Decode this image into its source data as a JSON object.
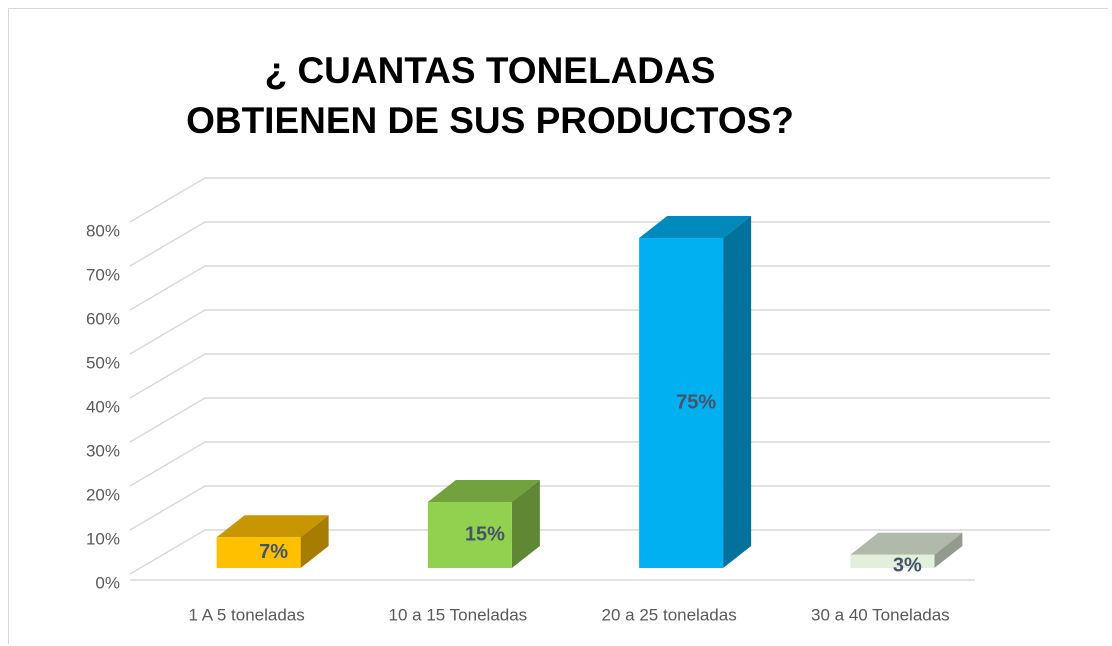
{
  "chart_data": {
    "type": "bar3d",
    "title": "¿ CUANTAS TONELADAS OBTIENEN DE SUS PRODUCTOS?",
    "categories": [
      "1 A 5 toneladas",
      "10 a 15 Toneladas",
      "20 a 25 toneladas",
      "30 a 40 Toneladas"
    ],
    "values": [
      7,
      15,
      75,
      3
    ],
    "value_labels": [
      "7%",
      "15%",
      "75%",
      "3%"
    ],
    "colors": [
      "#ffc000",
      "#92d050",
      "#00b0f0",
      "#e2efda"
    ],
    "ylim": [
      0,
      80
    ],
    "yticks": [
      {
        "value": 0,
        "label": "0%"
      },
      {
        "value": 10,
        "label": "10%"
      },
      {
        "value": 20,
        "label": "20%"
      },
      {
        "value": 30,
        "label": "30%"
      },
      {
        "value": 40,
        "label": "40%"
      },
      {
        "value": 50,
        "label": "50%"
      },
      {
        "value": 60,
        "label": "60%"
      },
      {
        "value": 70,
        "label": "70%"
      },
      {
        "value": 80,
        "label": "80%"
      }
    ],
    "grid": true
  }
}
